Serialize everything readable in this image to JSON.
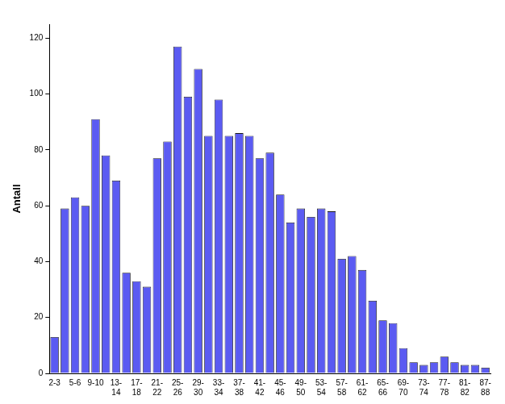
{
  "chart_data": {
    "type": "bar",
    "y_label": "Antall",
    "categories": [
      "2-3",
      null,
      "5-6",
      null,
      "9-10",
      null,
      "13-14",
      null,
      "17-18",
      null,
      "21-22",
      null,
      "25-26",
      null,
      "29-30",
      null,
      "33-34",
      null,
      "37-38",
      null,
      "41-42",
      null,
      "45-46",
      null,
      "49-50",
      null,
      "53-54",
      null,
      "57-58",
      null,
      "61-62",
      null,
      "65-66",
      null,
      "69-70",
      null,
      "73-74",
      null,
      "77-78",
      null,
      "81-82",
      null,
      "87-88"
    ],
    "values": [
      13,
      59,
      63,
      60,
      91,
      78,
      69,
      36,
      33,
      31,
      77,
      83,
      117,
      99,
      109,
      85,
      98,
      85,
      86,
      85,
      77,
      79,
      64,
      54,
      59,
      56,
      59,
      58,
      41,
      42,
      37,
      26,
      19,
      18,
      9,
      4,
      3,
      4,
      6,
      4,
      3,
      3,
      2
    ],
    "color": "#5b5bf2",
    "ylim": [
      0,
      125
    ],
    "yticks": [
      0,
      20,
      40,
      60,
      80,
      100,
      120
    ],
    "grid": false
  }
}
